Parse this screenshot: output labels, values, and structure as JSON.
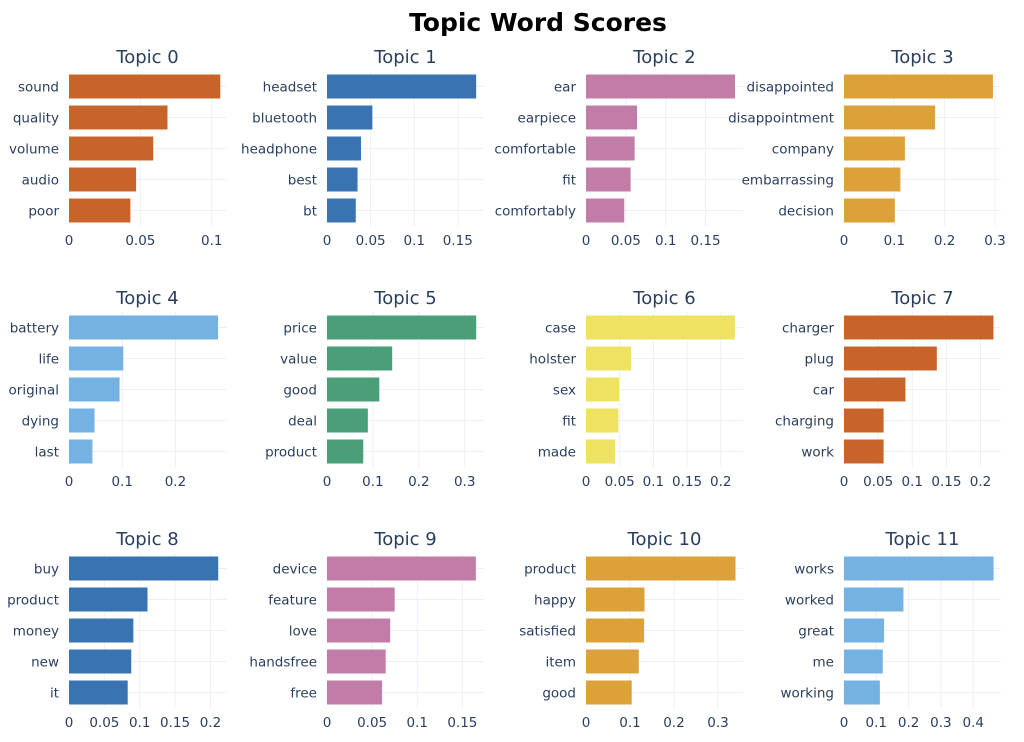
{
  "chart_data": {
    "type": "bar",
    "orientation": "horizontal",
    "title": "Topic Word Scores",
    "grid": true,
    "subplots": [
      {
        "title": "Topic 0",
        "color": "#C8642A",
        "categories": [
          "sound",
          "quality",
          "volume",
          "audio",
          "poor"
        ],
        "values": [
          0.106,
          0.069,
          0.059,
          0.047,
          0.043
        ],
        "xticks": [
          "0",
          "0.05",
          "0.1"
        ],
        "tick_values": [
          0,
          0.05,
          0.1
        ],
        "xlim": [
          0,
          0.11
        ]
      },
      {
        "title": "Topic 1",
        "color": "#3A73B2",
        "categories": [
          "headset",
          "bluetooth",
          "headphone",
          "best",
          "bt"
        ],
        "values": [
          0.171,
          0.052,
          0.039,
          0.035,
          0.033
        ],
        "xticks": [
          "0",
          "0.05",
          "0.1",
          "0.15"
        ],
        "tick_values": [
          0,
          0.05,
          0.1,
          0.15
        ],
        "xlim": [
          0,
          0.18
        ]
      },
      {
        "title": "Topic 2",
        "color": "#C27CA8",
        "categories": [
          "ear",
          "earpiece",
          "comfortable",
          "fit",
          "comfortably"
        ],
        "values": [
          0.187,
          0.064,
          0.061,
          0.056,
          0.048
        ],
        "xticks": [
          "0",
          "0.05",
          "0.1",
          "0.15"
        ],
        "tick_values": [
          0,
          0.05,
          0.1,
          0.15
        ],
        "xlim": [
          0,
          0.197
        ]
      },
      {
        "title": "Topic 3",
        "color": "#DDA13A",
        "categories": [
          "disappointed",
          "disappointment",
          "company",
          "embarrassing",
          "decision"
        ],
        "values": [
          0.296,
          0.181,
          0.121,
          0.112,
          0.101
        ],
        "xticks": [
          "0",
          "0.1",
          "0.2",
          "0.3"
        ],
        "tick_values": [
          0,
          0.1,
          0.2,
          0.3
        ],
        "xlim": [
          0,
          0.312
        ]
      },
      {
        "title": "Topic 4",
        "color": "#74B2E4",
        "categories": [
          "battery",
          "life",
          "original",
          "dying",
          "last"
        ],
        "values": [
          0.28,
          0.102,
          0.095,
          0.048,
          0.044
        ],
        "xticks": [
          "0",
          "0.1",
          "0.2"
        ],
        "tick_values": [
          0,
          0.1,
          0.2
        ],
        "xlim": [
          0,
          0.295
        ]
      },
      {
        "title": "Topic 5",
        "color": "#4A9E78",
        "categories": [
          "price",
          "value",
          "good",
          "deal",
          "product"
        ],
        "values": [
          0.325,
          0.142,
          0.114,
          0.089,
          0.079
        ],
        "xticks": [
          "0",
          "0.1",
          "0.2",
          "0.3"
        ],
        "tick_values": [
          0,
          0.1,
          0.2,
          0.3
        ],
        "xlim": [
          0,
          0.342
        ]
      },
      {
        "title": "Topic 6",
        "color": "#EEE262",
        "categories": [
          "case",
          "holster",
          "sex",
          "fit",
          "made"
        ],
        "values": [
          0.221,
          0.067,
          0.049,
          0.048,
          0.043
        ],
        "xticks": [
          "0",
          "0.05",
          "0.1",
          "0.15",
          "0.2"
        ],
        "tick_values": [
          0,
          0.05,
          0.1,
          0.15,
          0.2
        ],
        "xlim": [
          0,
          0.233
        ]
      },
      {
        "title": "Topic 7",
        "color": "#C8642A",
        "categories": [
          "charger",
          "plug",
          "car",
          "charging",
          "work"
        ],
        "values": [
          0.219,
          0.136,
          0.09,
          0.058,
          0.058
        ],
        "xticks": [
          "0",
          "0.05",
          "0.1",
          "0.15",
          "0.2"
        ],
        "tick_values": [
          0,
          0.05,
          0.1,
          0.15,
          0.2
        ],
        "xlim": [
          0,
          0.23
        ]
      },
      {
        "title": "Topic 8",
        "color": "#3A73B2",
        "categories": [
          "buy",
          "product",
          "money",
          "new",
          "it"
        ],
        "values": [
          0.211,
          0.111,
          0.091,
          0.088,
          0.083
        ],
        "xticks": [
          "0",
          "0.05",
          "0.1",
          "0.15",
          "0.2"
        ],
        "tick_values": [
          0,
          0.05,
          0.1,
          0.15,
          0.2
        ],
        "xlim": [
          0,
          0.222
        ]
      },
      {
        "title": "Topic 9",
        "color": "#C27CA8",
        "categories": [
          "device",
          "feature",
          "love",
          "handsfree",
          "free"
        ],
        "values": [
          0.165,
          0.075,
          0.07,
          0.065,
          0.061
        ],
        "xticks": [
          "0",
          "0.05",
          "0.1",
          "0.15"
        ],
        "tick_values": [
          0,
          0.05,
          0.1,
          0.15
        ],
        "xlim": [
          0,
          0.174
        ]
      },
      {
        "title": "Topic 10",
        "color": "#DDA13A",
        "categories": [
          "product",
          "happy",
          "satisfied",
          "item",
          "good"
        ],
        "values": [
          0.34,
          0.133,
          0.132,
          0.12,
          0.104
        ],
        "xticks": [
          "0",
          "0.1",
          "0.2",
          "0.3"
        ],
        "tick_values": [
          0,
          0.1,
          0.2,
          0.3
        ],
        "xlim": [
          0,
          0.357
        ]
      },
      {
        "title": "Topic 11",
        "color": "#74B2E4",
        "categories": [
          "works",
          "worked",
          "great",
          "me",
          "working"
        ],
        "values": [
          0.463,
          0.184,
          0.124,
          0.12,
          0.111
        ],
        "xticks": [
          "0",
          "0.1",
          "0.2",
          "0.3",
          "0.4"
        ],
        "tick_values": [
          0,
          0.1,
          0.2,
          0.3,
          0.4
        ],
        "xlim": [
          0,
          0.486
        ]
      }
    ]
  }
}
